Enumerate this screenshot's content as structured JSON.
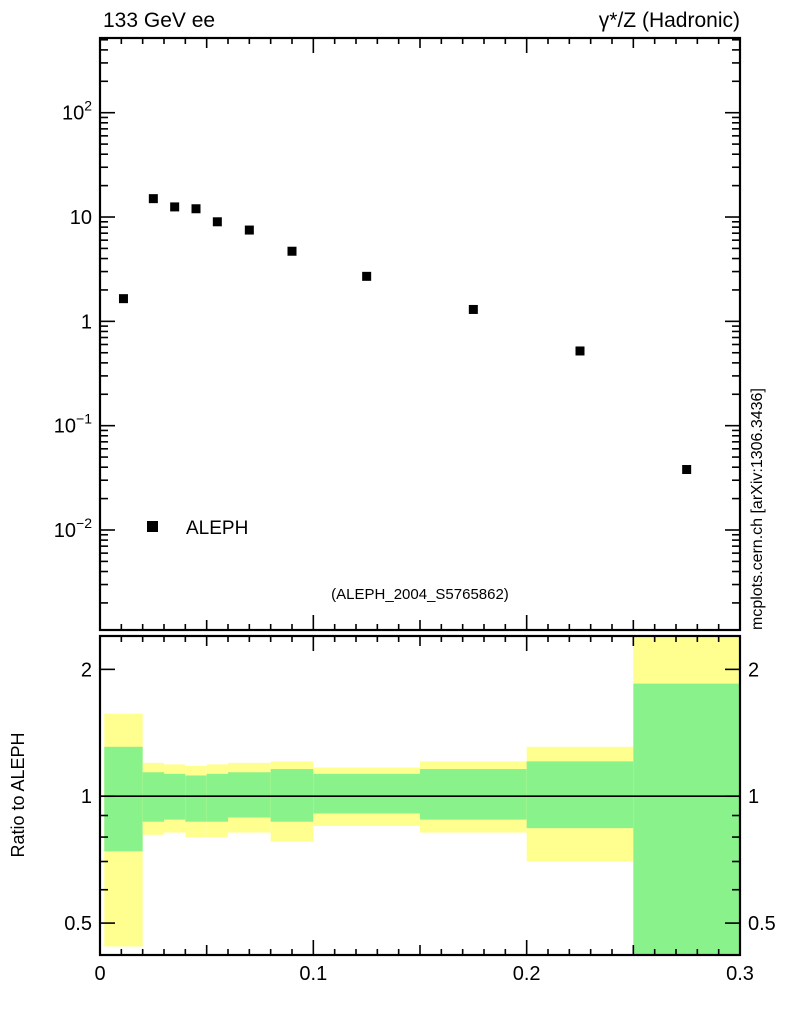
{
  "chart_data": {
    "type": "scatter",
    "title_left": "133 GeV ee",
    "title_right": "γ*/Z (Hadronic)",
    "watermark": "mcplots.cern.ch [arXiv:1306.3436]",
    "annotation": "(ALEPH_2004_S5765862)",
    "legend": {
      "label": "ALEPH",
      "marker": "filled-square",
      "position": "inside-lower-left"
    },
    "colors": {
      "band_outer": "#ffff8f",
      "band_inner": "#8af28a",
      "marker": "#000000"
    },
    "grid": "off",
    "xlabel": "",
    "xlim": [
      0,
      0.3
    ],
    "xticks": [
      {
        "v": 0,
        "label": "0"
      },
      {
        "v": 0.1,
        "label": "0.1"
      },
      {
        "v": 0.2,
        "label": "0.2"
      },
      {
        "v": 0.3,
        "label": "0.3"
      }
    ],
    "main": {
      "yscale": "log",
      "ylim": [
        0.0011,
        520
      ],
      "yticks": [
        {
          "v": 100,
          "base": "10",
          "exp": "2"
        },
        {
          "v": 10,
          "base": "10",
          "exp": ""
        },
        {
          "v": 1,
          "base": "1",
          "exp": ""
        },
        {
          "v": 0.1,
          "base": "10",
          "exp": "−1"
        },
        {
          "v": 0.01,
          "base": "10",
          "exp": "−2"
        }
      ],
      "series": [
        {
          "name": "ALEPH",
          "marker": "filled-square",
          "color": "#000000",
          "x": [
            0.011,
            0.025,
            0.035,
            0.045,
            0.055,
            0.07,
            0.09,
            0.125,
            0.175,
            0.225,
            0.275
          ],
          "y": [
            1.65,
            15.0,
            12.5,
            12.0,
            9.0,
            7.5,
            4.7,
            2.7,
            1.3,
            0.52,
            0.038
          ]
        }
      ]
    },
    "ratio": {
      "ylabel": "Ratio to ALEPH",
      "yscale": "log",
      "ylim": [
        0.42,
        2.4
      ],
      "reference_line": 1,
      "yticks": [
        {
          "v": 0.5,
          "label": "0.5"
        },
        {
          "v": 1,
          "label": "1"
        },
        {
          "v": 2,
          "label": "2"
        }
      ],
      "minor_ticks": [
        0.4,
        0.6,
        0.7,
        0.8,
        0.9,
        2.0
      ],
      "bin_edges": [
        0.002,
        0.02,
        0.03,
        0.04,
        0.05,
        0.06,
        0.08,
        0.1,
        0.15,
        0.2,
        0.25,
        0.3
      ],
      "bands": [
        {
          "yellow": [
            0.44,
            1.57
          ],
          "green": [
            0.74,
            1.31
          ]
        },
        {
          "yellow": [
            0.81,
            1.2
          ],
          "green": [
            0.87,
            1.14
          ]
        },
        {
          "yellow": [
            0.82,
            1.19
          ],
          "green": [
            0.88,
            1.13
          ]
        },
        {
          "yellow": [
            0.8,
            1.18
          ],
          "green": [
            0.87,
            1.12
          ]
        },
        {
          "yellow": [
            0.8,
            1.19
          ],
          "green": [
            0.87,
            1.13
          ]
        },
        {
          "yellow": [
            0.82,
            1.2
          ],
          "green": [
            0.89,
            1.14
          ]
        },
        {
          "yellow": [
            0.78,
            1.21
          ],
          "green": [
            0.87,
            1.16
          ]
        },
        {
          "yellow": [
            0.85,
            1.17
          ],
          "green": [
            0.91,
            1.13
          ]
        },
        {
          "yellow": [
            0.82,
            1.21
          ],
          "green": [
            0.88,
            1.16
          ]
        },
        {
          "yellow": [
            0.7,
            1.31
          ],
          "green": [
            0.84,
            1.21
          ]
        },
        {
          "yellow": [
            0.3,
            2.6
          ],
          "green": [
            0.3,
            1.85
          ]
        }
      ]
    }
  }
}
